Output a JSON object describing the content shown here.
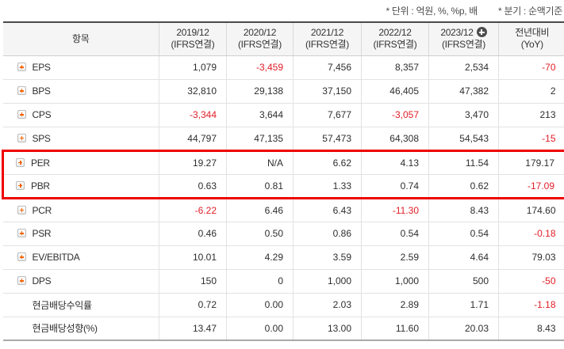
{
  "notes": {
    "unit": "* 단위 : 억원, %, %p, 배",
    "basis": "* 분기 : 순액기준"
  },
  "icons": {
    "expand": "plus-square-icon",
    "add_column": "plus-circle-icon"
  },
  "colors": {
    "negative_value": "#e11d26",
    "value_text": "#2e2e2e",
    "header_background": "#f5f5f5",
    "highlight_border": "#ee0000",
    "expand_plus": "#f26500",
    "add_circle": "#4d4d4d"
  },
  "table": {
    "item_header": "항목",
    "columns": [
      {
        "period": "2019/12",
        "standard": "(IFRS연결)",
        "add_icon": false
      },
      {
        "period": "2020/12",
        "standard": "(IFRS연결)",
        "add_icon": false
      },
      {
        "period": "2021/12",
        "standard": "(IFRS연결)",
        "add_icon": false
      },
      {
        "period": "2022/12",
        "standard": "(IFRS연결)",
        "add_icon": false
      },
      {
        "period": "2023/12",
        "standard": "(IFRS연결)",
        "add_icon": true
      },
      {
        "period": "전년대비",
        "standard": "(YoY)",
        "add_icon": false
      }
    ],
    "rows": [
      {
        "label": "EPS",
        "expandable": true,
        "highlighted": false,
        "values": [
          "1,079",
          "-3,459",
          "7,456",
          "8,357",
          "2,534",
          "-70"
        ]
      },
      {
        "label": "BPS",
        "expandable": true,
        "highlighted": false,
        "values": [
          "32,810",
          "29,138",
          "37,150",
          "46,405",
          "47,382",
          "2"
        ]
      },
      {
        "label": "CPS",
        "expandable": true,
        "highlighted": false,
        "values": [
          "-3,344",
          "3,644",
          "7,677",
          "-3,057",
          "3,470",
          "213"
        ]
      },
      {
        "label": "SPS",
        "expandable": true,
        "highlighted": false,
        "values": [
          "44,797",
          "47,135",
          "57,473",
          "64,308",
          "54,543",
          "-15"
        ]
      },
      {
        "label": "PER",
        "expandable": true,
        "highlighted": true,
        "values": [
          "19.27",
          "N/A",
          "6.62",
          "4.13",
          "11.54",
          "179.17"
        ]
      },
      {
        "label": "PBR",
        "expandable": true,
        "highlighted": true,
        "values": [
          "0.63",
          "0.81",
          "1.33",
          "0.74",
          "0.62",
          "-17.09"
        ]
      },
      {
        "label": "PCR",
        "expandable": true,
        "highlighted": false,
        "values": [
          "-6.22",
          "6.46",
          "6.43",
          "-11.30",
          "8.43",
          "174.60"
        ]
      },
      {
        "label": "PSR",
        "expandable": true,
        "highlighted": false,
        "values": [
          "0.46",
          "0.50",
          "0.86",
          "0.54",
          "0.54",
          "-0.18"
        ]
      },
      {
        "label": "EV/EBITDA",
        "expandable": true,
        "highlighted": false,
        "values": [
          "10.01",
          "4.29",
          "3.59",
          "2.59",
          "4.64",
          "79.03"
        ]
      },
      {
        "label": "DPS",
        "expandable": true,
        "highlighted": false,
        "values": [
          "150",
          "0",
          "1,000",
          "1,000",
          "500",
          "-50"
        ]
      },
      {
        "label": "현금배당수익률",
        "expandable": false,
        "highlighted": false,
        "values": [
          "0.72",
          "0.00",
          "2.03",
          "2.89",
          "1.71",
          "-1.18"
        ]
      },
      {
        "label": "현금배당성향(%)",
        "expandable": false,
        "highlighted": false,
        "values": [
          "13.47",
          "0.00",
          "13.00",
          "11.60",
          "20.03",
          "8.43"
        ]
      }
    ]
  }
}
